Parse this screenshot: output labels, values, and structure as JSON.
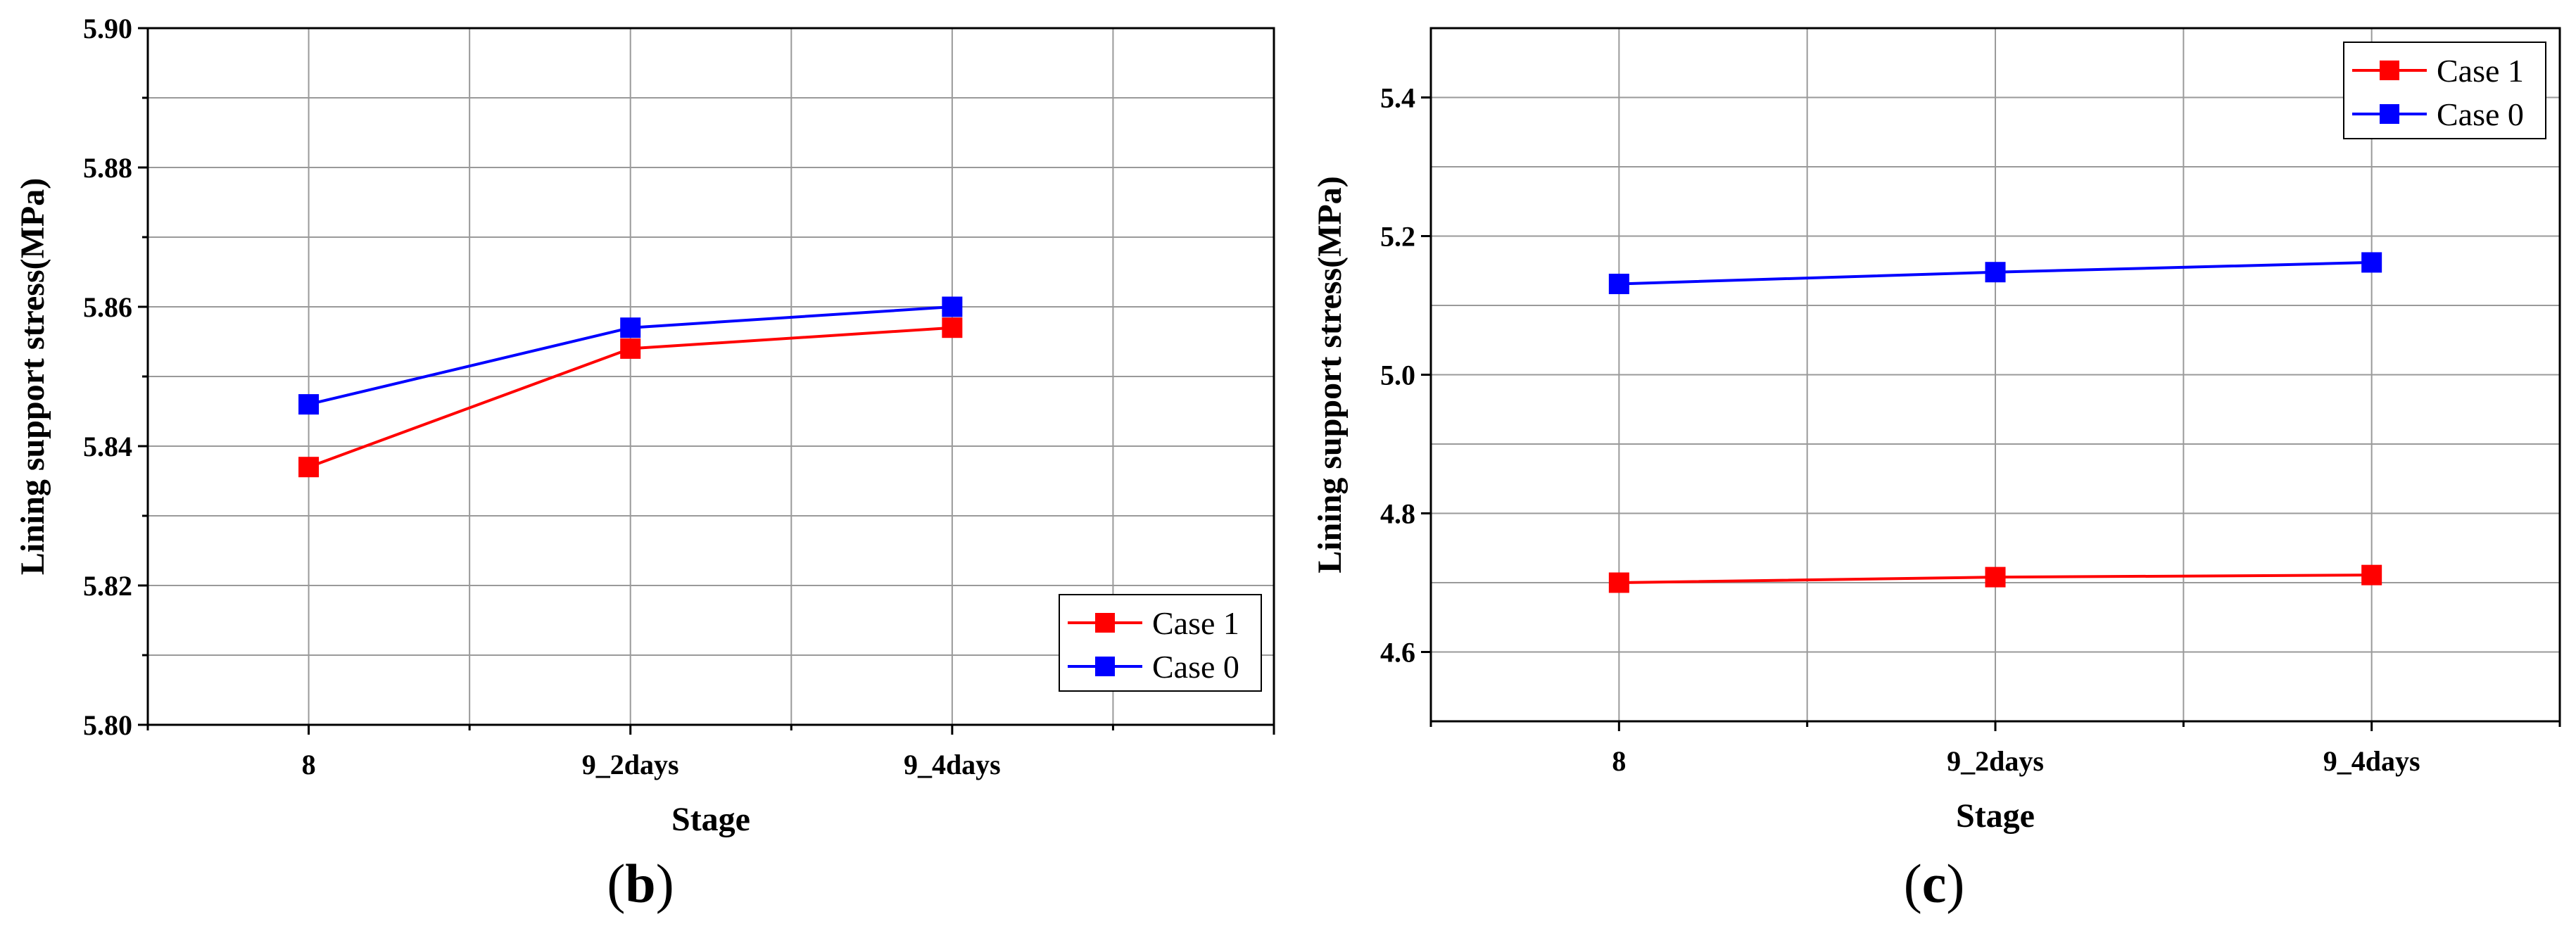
{
  "colors": {
    "case1": "#ff0000",
    "case0": "#0000ff",
    "grid": "#9a9a9a",
    "axis": "#000000"
  },
  "panels": {
    "b": {
      "label_open": "(",
      "label_letter": "b",
      "label_close": ")"
    },
    "c": {
      "label_open": "(",
      "label_letter": "c",
      "label_close": ")"
    }
  },
  "chart_data": [
    {
      "id": "b",
      "type": "line",
      "panel_label": "(b)",
      "xlabel": "Stage",
      "ylabel": "Lining support stress(MPa)",
      "categories": [
        "8",
        "9_2days",
        "9_4days"
      ],
      "x_range": [
        -0.5,
        3.0
      ],
      "ylim": [
        5.8,
        5.9
      ],
      "yticks": [
        "5.80",
        "5.82",
        "5.84",
        "5.86",
        "5.88",
        "5.90"
      ],
      "grid": true,
      "legend_position": "bottom-right",
      "series": [
        {
          "name": "Case 1",
          "color": "#ff0000",
          "values": [
            5.837,
            5.854,
            5.857
          ]
        },
        {
          "name": "Case 0",
          "color": "#0000ff",
          "values": [
            5.846,
            5.857,
            5.86
          ]
        }
      ]
    },
    {
      "id": "c",
      "type": "line",
      "panel_label": "(c)",
      "xlabel": "Stage",
      "ylabel": "Lining support stress(MPa)",
      "categories": [
        "8",
        "9_2days",
        "9_4days"
      ],
      "x_range": [
        -0.5,
        2.5
      ],
      "ylim": [
        4.5,
        5.5
      ],
      "yticks": [
        "4.6",
        "4.8",
        "5.0",
        "5.2",
        "5.4"
      ],
      "grid": true,
      "legend_position": "top-right",
      "series": [
        {
          "name": "Case 1",
          "color": "#ff0000",
          "values": [
            4.7,
            4.708,
            4.711
          ]
        },
        {
          "name": "Case 0",
          "color": "#0000ff",
          "values": [
            5.131,
            5.148,
            5.162
          ]
        }
      ]
    }
  ]
}
